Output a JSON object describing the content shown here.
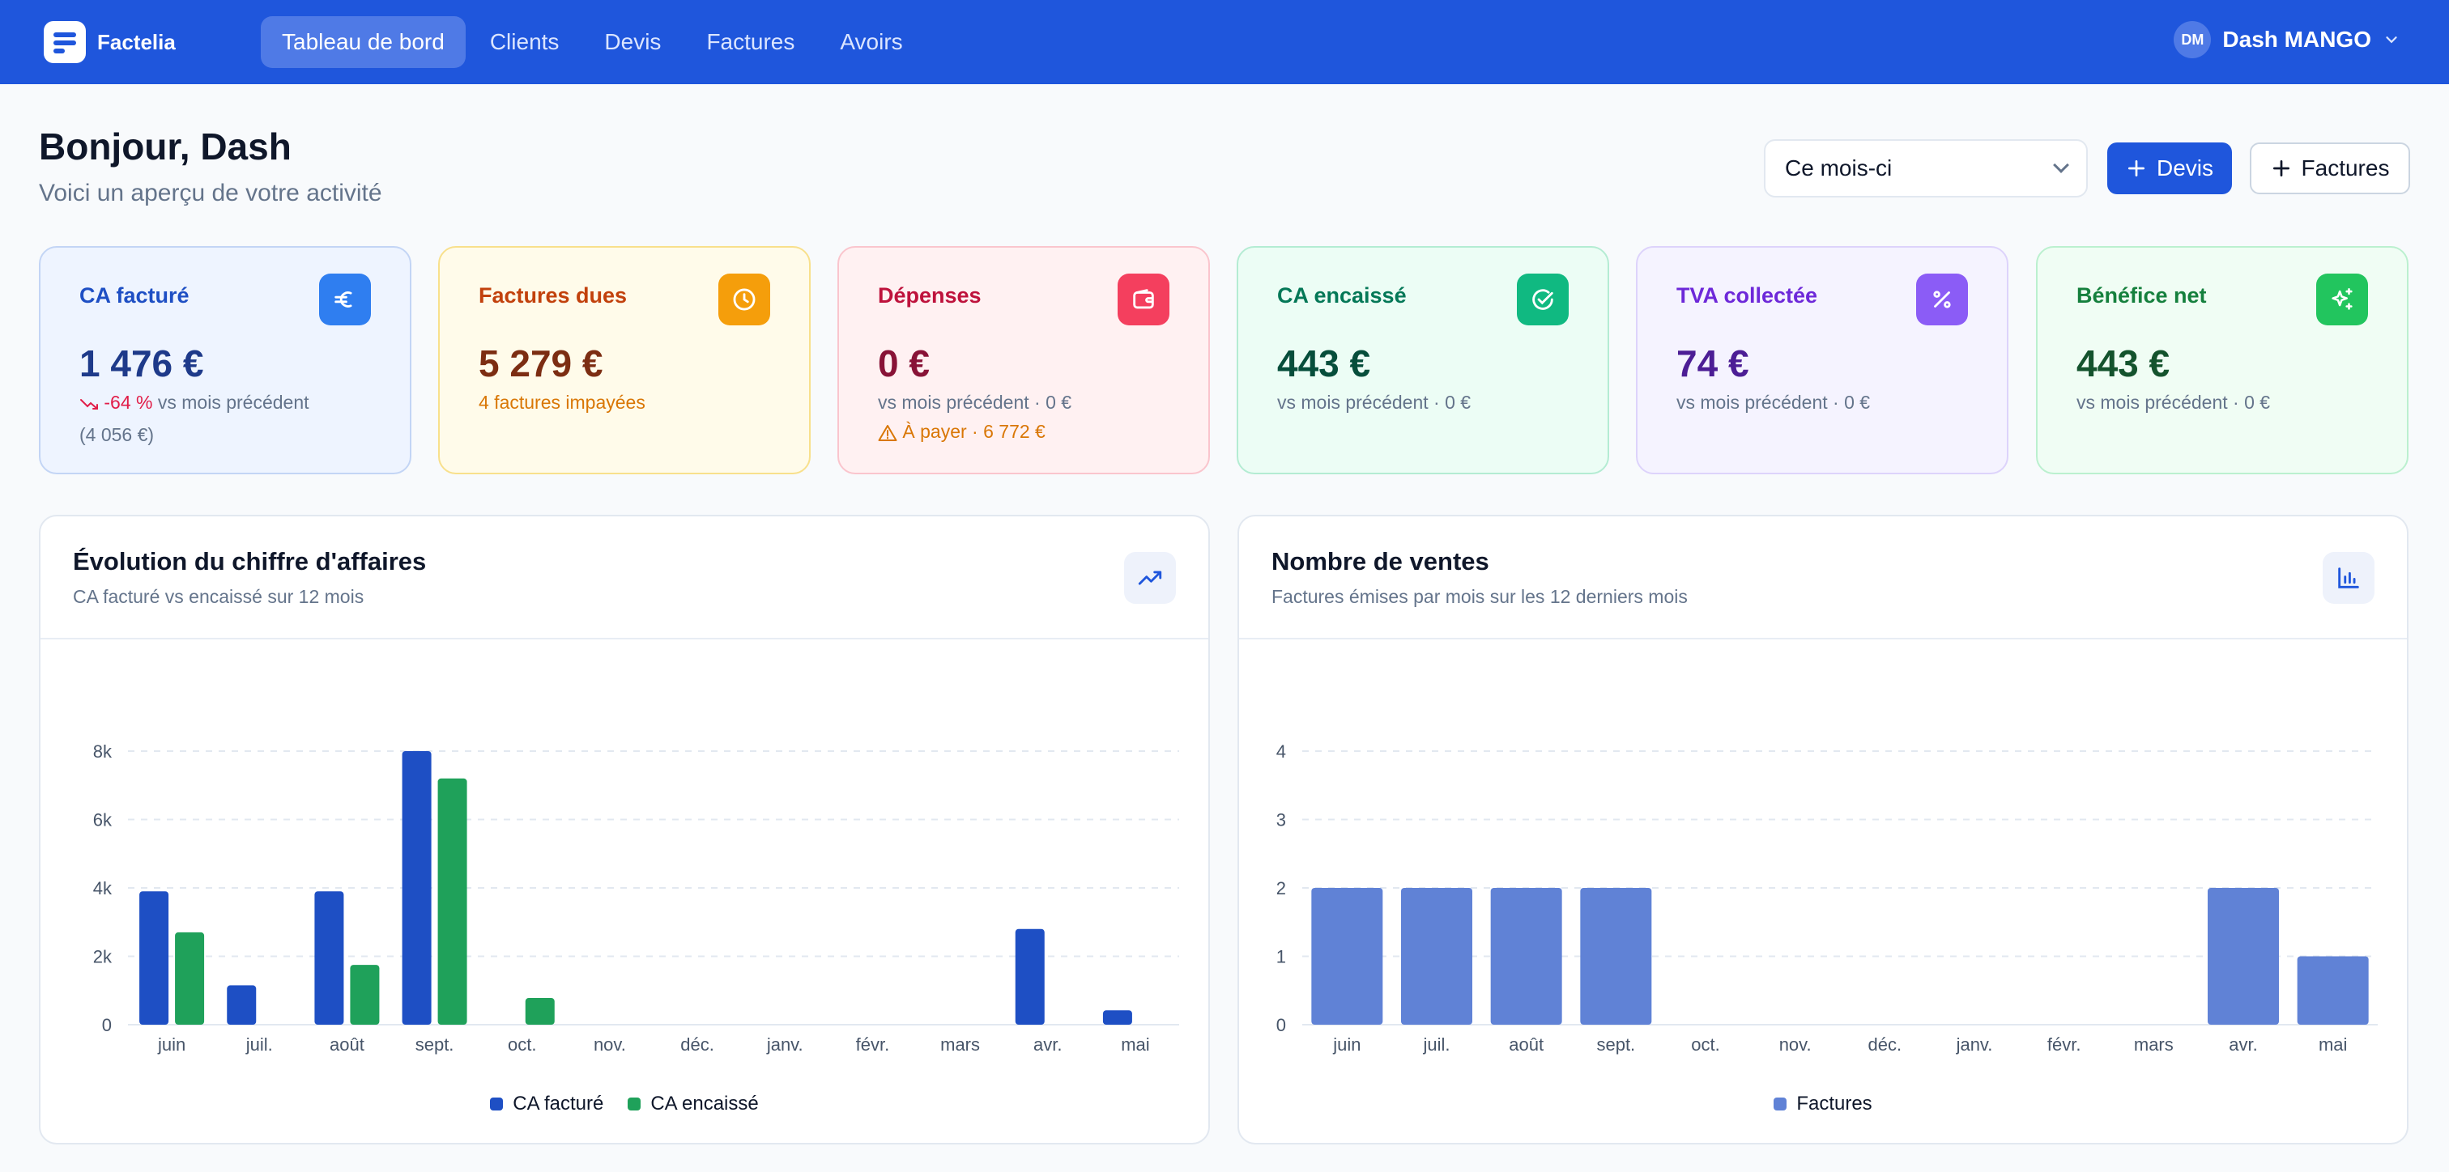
{
  "nav": {
    "brand": "Factelia",
    "links": [
      "Tableau de bord",
      "Clients",
      "Devis",
      "Factures",
      "Avoirs"
    ],
    "active": 0,
    "user_initials": "DM",
    "user_name": "Dash MANGO"
  },
  "header": {
    "greeting": "Bonjour, Dash",
    "subtitle": "Voici un aperçu de votre activité",
    "period": "Ce mois-ci",
    "btn_devis": "Devis",
    "btn_factures": "Factures"
  },
  "kpis": [
    {
      "title": "CA facturé",
      "value": "1 476 €",
      "trend": "-64 %",
      "line1": "vs mois précédent",
      "line2": "(4 056 €)",
      "icon": "euro-icon",
      "color": "#2f7ef0"
    },
    {
      "title": "Factures dues",
      "value": "5 279 €",
      "line1": "4 factures impayées",
      "icon": "clock-icon",
      "color": "#f59e0b"
    },
    {
      "title": "Dépenses",
      "value": "0 €",
      "line1": "vs mois précédent · 0 €",
      "line2": "À payer · 6 772 €",
      "icon": "wallet-icon",
      "color": "#f43f5e"
    },
    {
      "title": "CA encaissé",
      "value": "443 €",
      "line1": "vs mois précédent · 0 €",
      "icon": "check-circle-icon",
      "color": "#10b981"
    },
    {
      "title": "TVA collectée",
      "value": "74 €",
      "line1": "vs mois précédent · 0 €",
      "icon": "percent-icon",
      "color": "#8b5cf6"
    },
    {
      "title": "Bénéfice net",
      "value": "443 €",
      "line1": "vs mois précédent · 0 €",
      "icon": "sparkles-icon",
      "color": "#22c55e"
    }
  ],
  "chart_revenue": {
    "title": "Évolution du chiffre d'affaires",
    "subtitle": "CA facturé vs encaissé sur 12 mois"
  },
  "chart_sales": {
    "title": "Nombre de ventes",
    "subtitle": "Factures émises par mois sur les 12 derniers mois"
  },
  "chart_data": [
    {
      "type": "bar",
      "categories": [
        "juin",
        "juil.",
        "août",
        "sept.",
        "oct.",
        "nov.",
        "déc.",
        "janv.",
        "févr.",
        "mars",
        "avr.",
        "mai"
      ],
      "series": [
        {
          "name": "CA facturé",
          "color": "#1e4fc4",
          "values": [
            3900,
            1150,
            3900,
            8000,
            0,
            0,
            0,
            0,
            0,
            0,
            2800,
            420
          ]
        },
        {
          "name": "CA encaissé",
          "color": "#1fa15a",
          "values": [
            2700,
            0,
            1750,
            7200,
            780,
            0,
            0,
            0,
            0,
            0,
            0,
            0
          ]
        }
      ],
      "yticks": [
        "0",
        "2k",
        "4k",
        "6k",
        "8k"
      ],
      "ylim": [
        0,
        8000
      ],
      "grid": true,
      "legend": "bottom"
    },
    {
      "type": "bar",
      "categories": [
        "juin",
        "juil.",
        "août",
        "sept.",
        "oct.",
        "nov.",
        "déc.",
        "janv.",
        "févr.",
        "mars",
        "avr.",
        "mai"
      ],
      "series": [
        {
          "name": "Factures",
          "color": "#6082d6",
          "values": [
            2,
            2,
            2,
            2,
            0,
            0,
            0,
            0,
            0,
            0,
            2,
            1
          ]
        }
      ],
      "yticks": [
        "0",
        "1",
        "2",
        "3",
        "4"
      ],
      "ylim": [
        0,
        4
      ],
      "grid": true,
      "legend": "bottom"
    }
  ]
}
